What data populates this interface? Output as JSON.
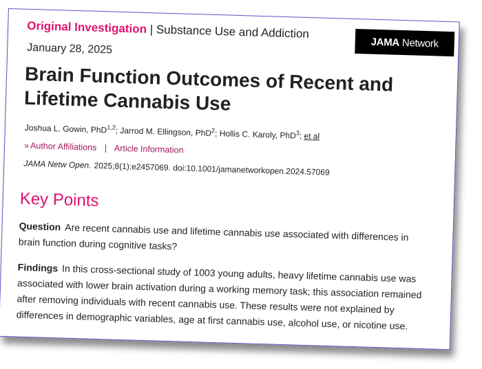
{
  "header": {
    "article_type": "Original Investigation",
    "separator": "|",
    "section": "Substance Use and Addiction",
    "logo_bold": "JAMA",
    "logo_rest": "Network",
    "date": "January 28, 2025"
  },
  "title": "Brain Function Outcomes of Recent and Lifetime Cannabis Use",
  "authors": [
    {
      "name": "Joshua L. Gowin, PhD",
      "sup": "1,2"
    },
    {
      "name": "Jarrod M. Ellingson, PhD",
      "sup": "2"
    },
    {
      "name": "Hollis C. Karoly, PhD",
      "sup": "3"
    }
  ],
  "et_al": "et al",
  "links": {
    "chevron": "»",
    "affiliations": "Author Affiliations",
    "divider": "|",
    "article_info": "Article Information"
  },
  "citation": {
    "journal": "JAMA Netw Open.",
    "rest": "2025;8(1):e2457069. doi:10.1001/jamanetworkopen.2024.57069"
  },
  "key_points": {
    "heading": "Key Points",
    "question_label": "Question",
    "question": "Are recent cannabis use and lifetime cannabis use associated with differences in brain function during cognitive tasks?",
    "findings_label": "Findings",
    "findings": "In this cross-sectional study of 1003 young adults, heavy lifetime cannabis use was associated with lower brain activation during a working memory task; this association remained after removing individuals with recent cannabis use. These results were not explained by differences in demographic variables, age at first cannabis use, alcohol use, or nicotine use."
  },
  "colors": {
    "accent": "#e0116f",
    "link": "#a4165b",
    "border": "#5b53c6"
  }
}
